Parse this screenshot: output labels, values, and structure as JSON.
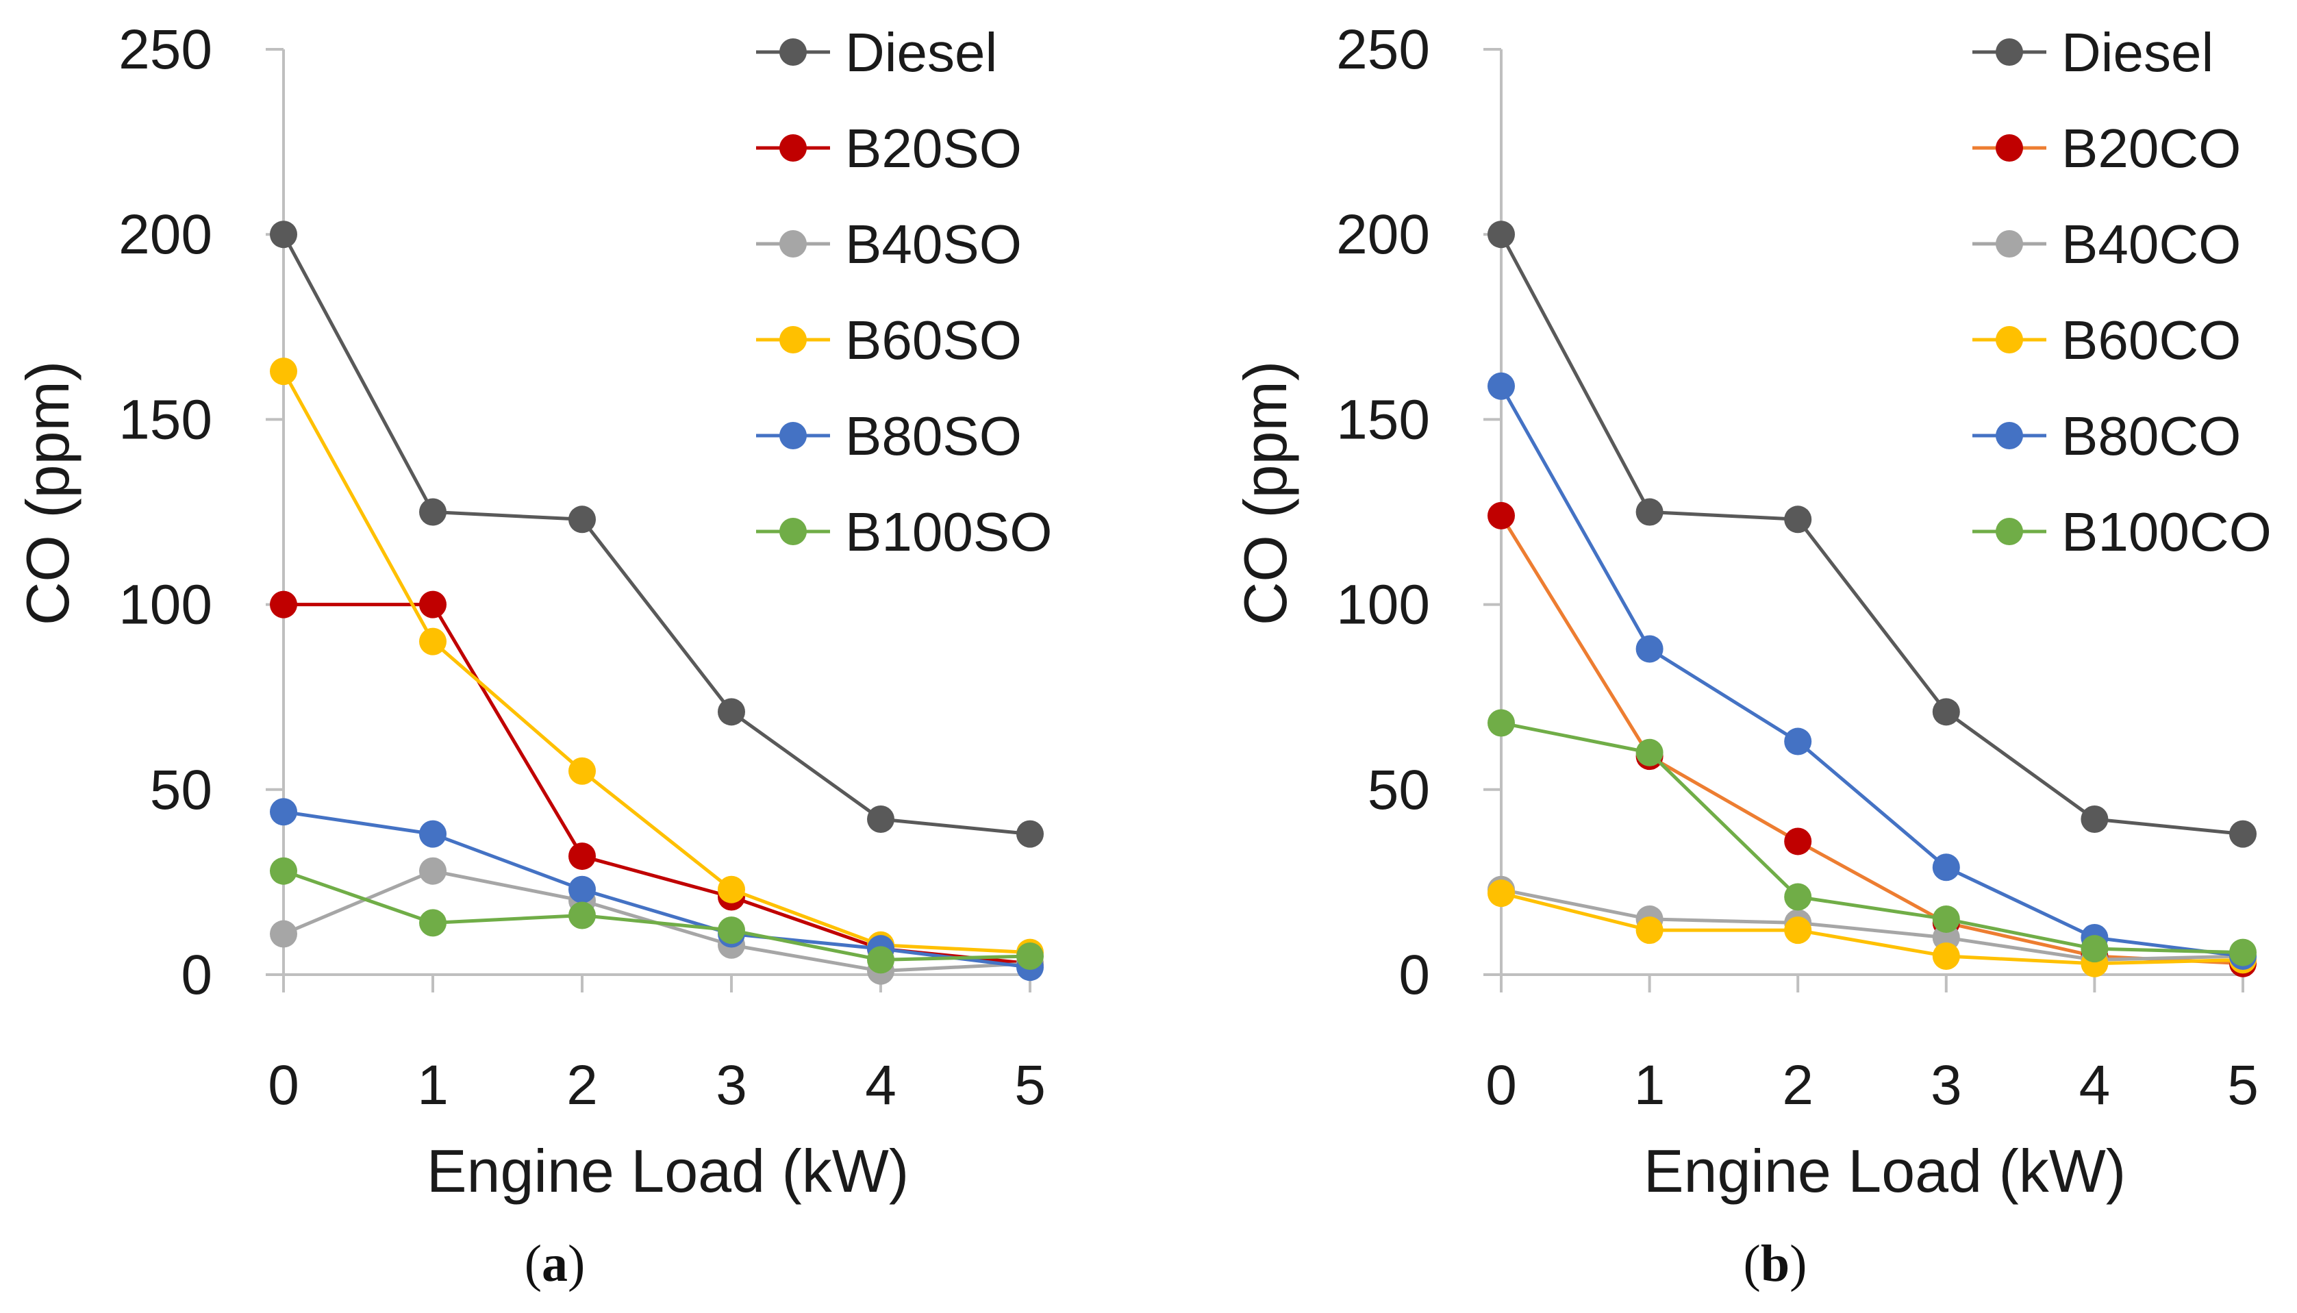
{
  "chart_data": [
    {
      "type": "line",
      "panel_label": "(a)",
      "panel_letter": "a",
      "xlabel": "Engine Load (kW)",
      "ylabel": "CO (ppm)",
      "x": [
        0,
        1,
        2,
        3,
        4,
        5
      ],
      "xticks": [
        "0",
        "1",
        "2",
        "3",
        "4",
        "5"
      ],
      "ylim": [
        0,
        250
      ],
      "yticks": [
        "0",
        "50",
        "100",
        "150",
        "200",
        "250"
      ],
      "legend_position": "top-right",
      "series": [
        {
          "name": "Diesel",
          "color": "#595959",
          "values": [
            200,
            125,
            123,
            71,
            42,
            38
          ]
        },
        {
          "name": "B20SO",
          "color": "#C00000",
          "values": [
            100,
            100,
            32,
            21,
            7,
            3
          ]
        },
        {
          "name": "B40SO",
          "color": "#A6A6A6",
          "values": [
            11,
            28,
            20,
            8,
            1,
            3
          ]
        },
        {
          "name": "B60SO",
          "color": "#FFC000",
          "values": [
            163,
            90,
            55,
            23,
            8,
            6
          ]
        },
        {
          "name": "B80SO",
          "color": "#4472C4",
          "values": [
            44,
            38,
            23,
            11,
            7,
            2
          ]
        },
        {
          "name": "B100SO",
          "color": "#70AD47",
          "values": [
            28,
            14,
            16,
            12,
            4,
            5
          ]
        }
      ]
    },
    {
      "type": "line",
      "panel_label": "(b)",
      "panel_letter": "b",
      "xlabel": "Engine Load (kW)",
      "ylabel": "CO (ppm)",
      "x": [
        0,
        1,
        2,
        3,
        4,
        5
      ],
      "xticks": [
        "0",
        "1",
        "2",
        "3",
        "4",
        "5"
      ],
      "ylim": [
        0,
        250
      ],
      "yticks": [
        "0",
        "50",
        "100",
        "150",
        "200",
        "250"
      ],
      "legend_position": "top-right",
      "series": [
        {
          "name": "Diesel",
          "color": "#595959",
          "values": [
            200,
            125,
            123,
            71,
            42,
            38
          ]
        },
        {
          "name": "B20CO",
          "color": "#ED7D31",
          "marker_color": "#C00000",
          "values": [
            124,
            59,
            36,
            14,
            5,
            3
          ]
        },
        {
          "name": "B40CO",
          "color": "#A6A6A6",
          "values": [
            23,
            15,
            14,
            10,
            4,
            5
          ]
        },
        {
          "name": "B60CO",
          "color": "#FFC000",
          "values": [
            22,
            12,
            12,
            5,
            3,
            4
          ]
        },
        {
          "name": "B80CO",
          "color": "#4472C4",
          "values": [
            159,
            88,
            63,
            29,
            10,
            5
          ]
        },
        {
          "name": "B100CO",
          "color": "#70AD47",
          "values": [
            68,
            60,
            21,
            15,
            7,
            6
          ]
        }
      ]
    }
  ]
}
